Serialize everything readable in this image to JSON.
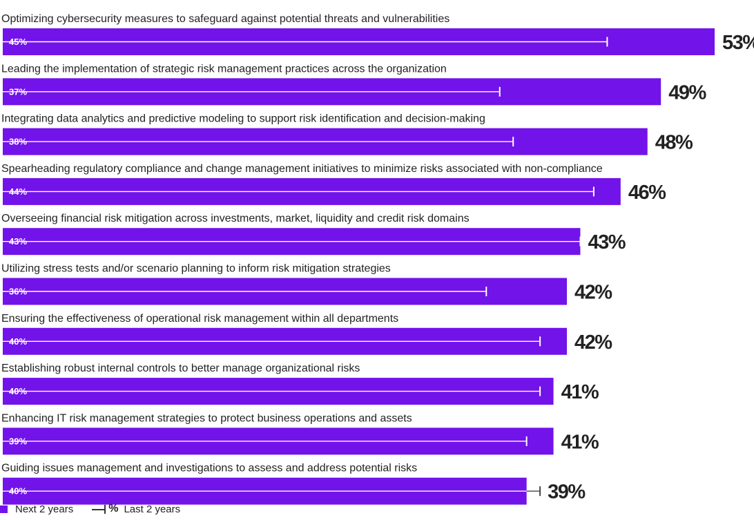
{
  "chart_data": {
    "type": "bar",
    "orientation": "horizontal",
    "categories": [
      "Optimizing cybersecurity measures to safeguard against potential threats and vulnerabilities",
      "Leading the implementation of strategic risk management practices across the organization",
      "Integrating data analytics and predictive modeling to support risk identification and decision-making",
      "Spearheading regulatory compliance and change management initiatives to minimize risks associated with non-compliance",
      "Overseeing financial risk mitigation across investments, market, liquidity and credit risk domains",
      "Utilizing stress tests and/or scenario planning to inform risk mitigation strategies",
      "Ensuring the effectiveness of operational risk management within all departments",
      "Establishing robust internal controls to better manage organizational risks",
      "Enhancing IT risk management strategies to protect business operations and assets",
      "Guiding issues management and investigations to assess and address potential risks"
    ],
    "series": [
      {
        "name": "Next 2 years",
        "style": "bar",
        "color": "#7213ea",
        "values": [
          53,
          49,
          48,
          46,
          43,
          42,
          42,
          41,
          41,
          39
        ]
      },
      {
        "name": "Last 2 years",
        "style": "line-marker",
        "color": "#ffffff",
        "values": [
          45,
          37,
          38,
          44,
          43,
          36,
          40,
          40,
          39,
          40
        ]
      }
    ],
    "value_suffix": "%",
    "xlim": [
      0,
      53
    ],
    "grid": false,
    "legend_position": "bottom-left"
  },
  "legend": {
    "next_label": "Next 2 years",
    "pct_symbol": "%",
    "last_label": "Last 2 years"
  }
}
